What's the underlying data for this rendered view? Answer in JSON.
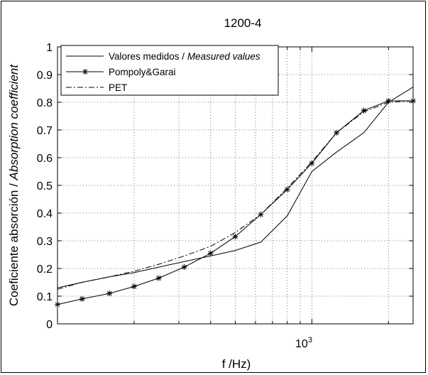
{
  "chart_data": {
    "type": "line",
    "title": "1200-4",
    "xlabel": "f /Hz)",
    "ylabel_main": "Coeficiente absorción / ",
    "ylabel_italic": "Absorption coefficient",
    "xscale": "log",
    "xlim": [
      100,
      2500
    ],
    "ylim": [
      0,
      1
    ],
    "yticks": [
      "0",
      "0.1",
      "0.2",
      "0.3",
      "0.4",
      "0.5",
      "0.6",
      "0.7",
      "0.8",
      "0.9",
      "1"
    ],
    "xtick_major_label_base": "10",
    "xtick_major_label_exp": "3",
    "grid": true,
    "legend_position": "top-left",
    "series": [
      {
        "name": "Valores medidos / ",
        "name_italic": "Measured values",
        "style": "solid",
        "marker": "none",
        "x": [
          100,
          125,
          160,
          200,
          250,
          315,
          400,
          500,
          630,
          800,
          1000,
          1250,
          1600,
          2000,
          2500
        ],
        "y": [
          0.13,
          0.15,
          0.17,
          0.185,
          0.205,
          0.225,
          0.245,
          0.265,
          0.295,
          0.39,
          0.55,
          0.62,
          0.69,
          0.8,
          0.855
        ]
      },
      {
        "name": "Pompoly&Garai",
        "style": "solid",
        "marker": "star",
        "x": [
          100,
          125,
          160,
          200,
          250,
          315,
          400,
          500,
          630,
          800,
          1000,
          1250,
          1600,
          2000,
          2500
        ],
        "y": [
          0.07,
          0.09,
          0.11,
          0.135,
          0.165,
          0.205,
          0.255,
          0.315,
          0.395,
          0.485,
          0.58,
          0.69,
          0.77,
          0.805,
          0.805
        ]
      },
      {
        "name": "PET",
        "style": "dashdot",
        "marker": "none",
        "x": [
          100,
          125,
          160,
          200,
          250,
          315,
          400,
          500,
          630,
          800,
          1000,
          1250,
          1600,
          2000,
          2500
        ],
        "y": [
          0.125,
          0.15,
          0.17,
          0.19,
          0.215,
          0.245,
          0.28,
          0.33,
          0.395,
          0.49,
          0.585,
          0.69,
          0.765,
          0.8,
          0.805
        ]
      }
    ]
  }
}
